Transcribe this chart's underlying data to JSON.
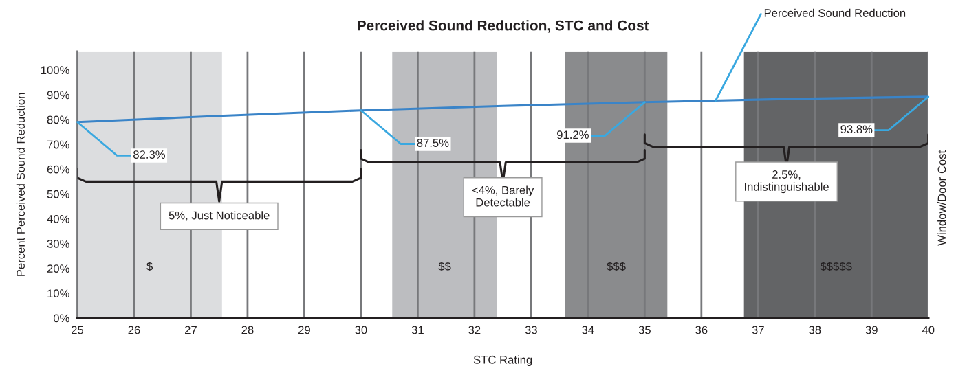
{
  "chart_data": {
    "type": "line",
    "title": "Perceived Sound Reduction, STC and Cost",
    "xlabel": "STC Rating",
    "ylabel": "Percent Perceived Sound Reduction",
    "y2label": "Window/Door Cost",
    "x": [
      25,
      27.5,
      30,
      32.5,
      35,
      37.5,
      40
    ],
    "series": [
      {
        "name": "Perceived Sound Reduction",
        "color": "#3a84c8",
        "values": [
          79,
          81.5,
          83.7,
          85.5,
          87,
          88.3,
          89.2
        ]
      }
    ],
    "xlim": [
      25,
      40
    ],
    "xticks": [
      25,
      26,
      27,
      28,
      29,
      30,
      31,
      32,
      33,
      34,
      35,
      36,
      37,
      38,
      39,
      40
    ],
    "ylim": [
      0,
      107.5
    ],
    "yticks": [
      {
        "value": 0,
        "label": "0%"
      },
      {
        "value": 10,
        "label": "10%"
      },
      {
        "value": 20,
        "label": "20%"
      },
      {
        "value": 30,
        "label": "30%"
      },
      {
        "value": 40,
        "label": "40%"
      },
      {
        "value": 50,
        "label": "50%"
      },
      {
        "value": 60,
        "label": "60%"
      },
      {
        "value": 70,
        "label": "70%"
      },
      {
        "value": 80,
        "label": "80%"
      },
      {
        "value": 90,
        "label": "90%"
      },
      {
        "value": 100,
        "label": "100%"
      }
    ],
    "grid": "x",
    "marker": "none",
    "line_style": "solid",
    "bands": [
      {
        "axis": "x",
        "from": 25,
        "to": 27.55,
        "label": "$",
        "color": "#dcdddf"
      },
      {
        "axis": "x",
        "from": 30.55,
        "to": 32.4,
        "label": "$$",
        "color": "#bcbdc0"
      },
      {
        "axis": "x",
        "from": 33.6,
        "to": 35.4,
        "label": "$$$",
        "color": "#8a8b8d"
      },
      {
        "axis": "x",
        "from": 36.75,
        "to": 40,
        "label": "$$$$$",
        "color": "#636466"
      }
    ],
    "annotations": [
      {
        "text": "82.3%",
        "x": 25,
        "y": 79
      },
      {
        "text": "87.5%",
        "x": 30,
        "y": 83.7
      },
      {
        "text": "91.2%",
        "x": 35,
        "y": 87
      },
      {
        "text": "93.8%",
        "x": 40,
        "y": 89.2
      },
      "5%, Just Noticeable",
      "<4%, Barely\nDetectable",
      "2.5%,\nIndistinguishable"
    ]
  }
}
